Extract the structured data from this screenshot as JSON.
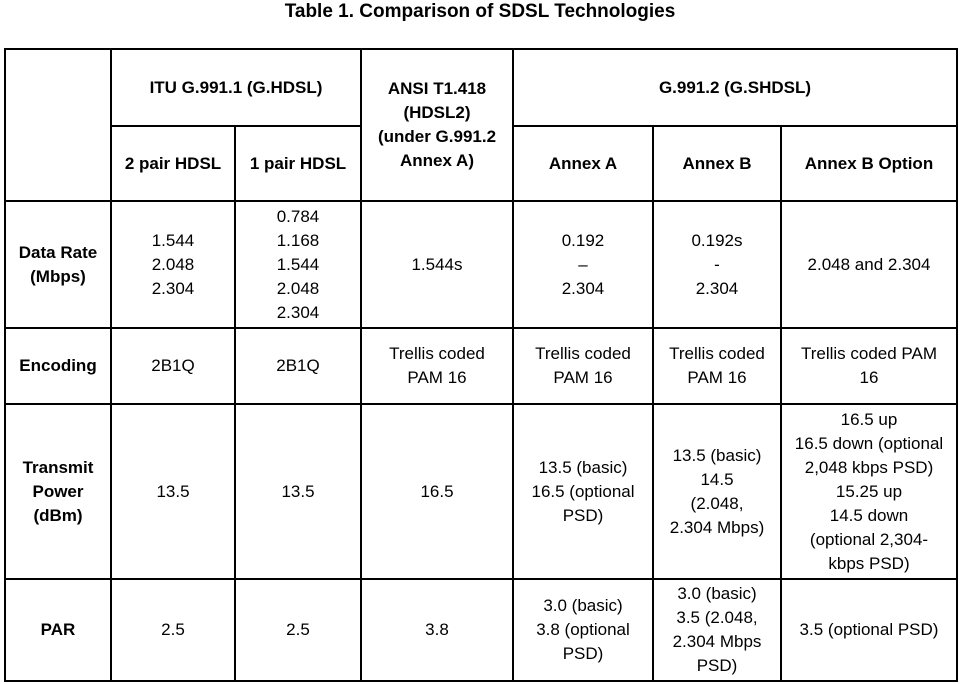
{
  "title": "Table 1. Comparison of SDSL Technologies",
  "header": {
    "row1": [
      [
        "ITU G.991.1 (G.HDSL)"
      ],
      [
        "ANSI T1.418",
        "(HDSL2)",
        "(under G.991.2",
        "Annex A)"
      ],
      [
        "G.991.2 (G.SHDSL)"
      ]
    ],
    "row2": [
      [
        "2 pair HDSL"
      ],
      [
        "1 pair HDSL"
      ],
      [
        "Annex A"
      ],
      [
        "Annex B"
      ],
      [
        "Annex B Option"
      ]
    ]
  },
  "rows": [
    {
      "label": [
        "Data Rate",
        "(Mbps)"
      ],
      "cells": [
        [
          "1.544",
          "2.048",
          "2.304"
        ],
        [
          "0.784",
          "1.168",
          "1.544",
          "2.048",
          "2.304"
        ],
        [
          "1.544s"
        ],
        [
          "0.192",
          "–",
          "2.304"
        ],
        [
          "0.192s",
          "-",
          "2.304"
        ],
        [
          "2.048 and 2.304"
        ]
      ]
    },
    {
      "label": [
        "Encoding"
      ],
      "cells": [
        [
          "2B1Q"
        ],
        [
          "2B1Q"
        ],
        [
          "Trellis coded",
          "PAM 16"
        ],
        [
          "Trellis coded",
          "PAM 16"
        ],
        [
          "Trellis coded",
          "PAM 16"
        ],
        [
          "Trellis coded PAM",
          "16"
        ]
      ]
    },
    {
      "label": [
        "Transmit",
        "Power",
        "(dBm)"
      ],
      "cells": [
        [
          "13.5"
        ],
        [
          "13.5"
        ],
        [
          "16.5"
        ],
        [
          "13.5 (basic)",
          "16.5 (optional",
          "PSD)"
        ],
        [
          "13.5 (basic)",
          "14.5",
          "(2.048,",
          "2.304 Mbps)"
        ],
        [
          "16.5 up",
          "16.5 down (optional",
          "2,048 kbps PSD)",
          "15.25 up",
          "14.5 down",
          "(optional 2,304-",
          "kbps PSD)"
        ]
      ]
    },
    {
      "label": [
        "PAR"
      ],
      "cells": [
        [
          "2.5"
        ],
        [
          "2.5"
        ],
        [
          "3.8"
        ],
        [
          "3.0 (basic)",
          "3.8 (optional",
          "PSD)"
        ],
        [
          "3.0 (basic)",
          "3.5 (2.048,",
          "2.304 Mbps",
          "PSD)"
        ],
        [
          "3.5 (optional PSD)"
        ]
      ]
    }
  ]
}
